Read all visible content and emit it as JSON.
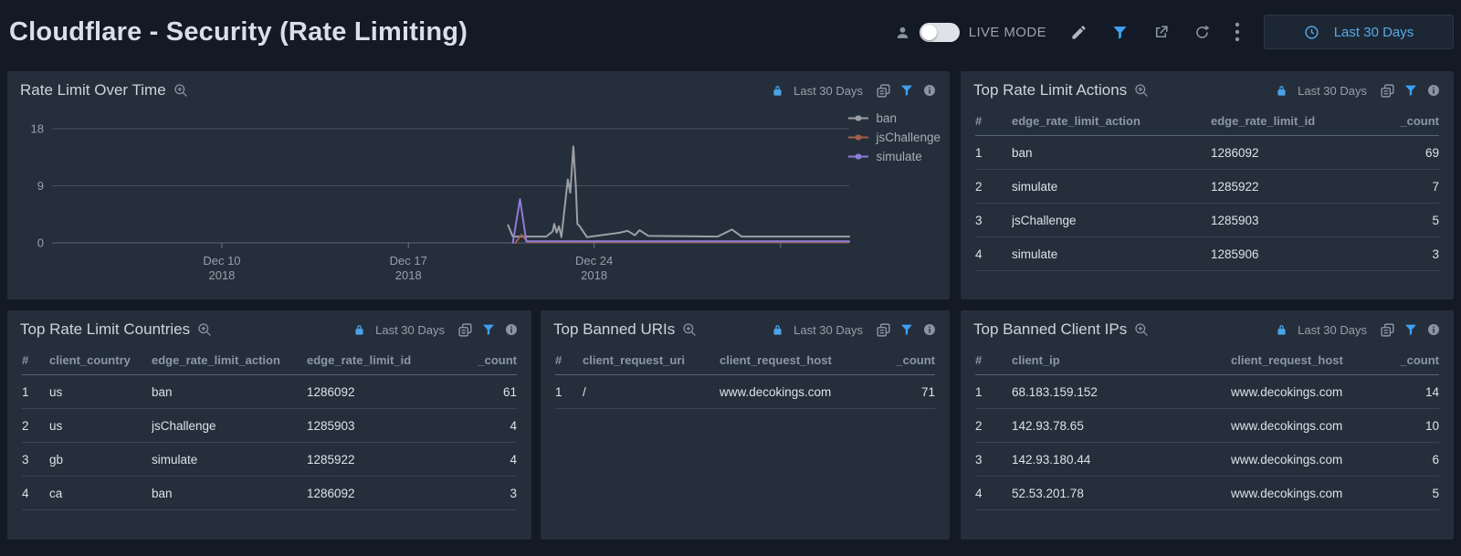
{
  "header": {
    "title": "Cloudflare - Security (Rate Limiting)",
    "live_mode_label": "LIVE MODE",
    "live_mode_on": false,
    "time_range": "Last 30 Days"
  },
  "panels": {
    "rate_limit_over_time": {
      "title": "Rate Limit Over Time",
      "time_range": "Last 30 Days"
    },
    "top_rate_limit_actions": {
      "title": "Top Rate Limit Actions",
      "time_range": "Last 30 Days",
      "table": {
        "columns": [
          "#",
          "edge_rate_limit_action",
          "edge_rate_limit_id",
          "_count"
        ],
        "rows": [
          [
            "1",
            "ban",
            "1286092",
            "69"
          ],
          [
            "2",
            "simulate",
            "1285922",
            "7"
          ],
          [
            "3",
            "jsChallenge",
            "1285903",
            "5"
          ],
          [
            "4",
            "simulate",
            "1285906",
            "3"
          ]
        ]
      }
    },
    "top_rate_limit_countries": {
      "title": "Top Rate Limit Countries",
      "time_range": "Last 30 Days",
      "table": {
        "columns": [
          "#",
          "client_country",
          "edge_rate_limit_action",
          "edge_rate_limit_id",
          "_count"
        ],
        "rows": [
          [
            "1",
            "us",
            "ban",
            "1286092",
            "61"
          ],
          [
            "2",
            "us",
            "jsChallenge",
            "1285903",
            "4"
          ],
          [
            "3",
            "gb",
            "simulate",
            "1285922",
            "4"
          ],
          [
            "4",
            "ca",
            "ban",
            "1286092",
            "3"
          ]
        ]
      }
    },
    "top_banned_uris": {
      "title": "Top Banned URIs",
      "time_range": "Last 30 Days",
      "table": {
        "columns": [
          "#",
          "client_request_uri",
          "client_request_host",
          "_count"
        ],
        "rows": [
          [
            "1",
            "/",
            "www.decokings.com",
            "71"
          ]
        ]
      }
    },
    "top_banned_client_ips": {
      "title": "Top Banned Client IPs",
      "time_range": "Last 30 Days",
      "table": {
        "columns": [
          "#",
          "client_ip",
          "client_request_host",
          "_count"
        ],
        "rows": [
          [
            "1",
            "68.183.159.152",
            "www.decokings.com",
            "14"
          ],
          [
            "2",
            "142.93.78.65",
            "www.decokings.com",
            "10"
          ],
          [
            "3",
            "142.93.180.44",
            "www.decokings.com",
            "6"
          ],
          [
            "4",
            "52.53.201.78",
            "www.decokings.com",
            "5"
          ]
        ]
      }
    }
  },
  "chart_data": {
    "type": "line",
    "title": "Rate Limit Over Time",
    "xlabel": "",
    "ylabel": "",
    "ylim": [
      0,
      18
    ],
    "yticks": [
      0,
      9,
      18
    ],
    "grid": true,
    "legend_position": "top-right",
    "xticks": [
      {
        "pos": 0.213,
        "line1": "Dec 10",
        "line2": "2018"
      },
      {
        "pos": 0.447,
        "line1": "Dec 17",
        "line2": "2018"
      },
      {
        "pos": 0.68,
        "line1": "Dec 24",
        "line2": "2018"
      },
      {
        "pos": 0.914,
        "line1": "",
        "line2": ""
      }
    ],
    "series": [
      {
        "name": "ban",
        "color": "#9da0a4",
        "points": [
          [
            0.572,
            2.8
          ],
          [
            0.578,
            1.0
          ],
          [
            0.62,
            1.0
          ],
          [
            0.628,
            1.8
          ],
          [
            0.63,
            3.0
          ],
          [
            0.633,
            1.6
          ],
          [
            0.636,
            2.6
          ],
          [
            0.639,
            0.9
          ],
          [
            0.647,
            10.0
          ],
          [
            0.65,
            7.9
          ],
          [
            0.654,
            15.2
          ],
          [
            0.657,
            9.0
          ],
          [
            0.659,
            3.0
          ],
          [
            0.662,
            2.6
          ],
          [
            0.671,
            0.9
          ],
          [
            0.712,
            1.6
          ],
          [
            0.722,
            1.9
          ],
          [
            0.731,
            1.2
          ],
          [
            0.737,
            2.0
          ],
          [
            0.748,
            1.1
          ],
          [
            0.835,
            1.0
          ],
          [
            0.853,
            2.1
          ],
          [
            0.865,
            1.0
          ],
          [
            1.0,
            1.0
          ]
        ]
      },
      {
        "name": "jsChallenge",
        "color": "#a35f4b",
        "points": [
          [
            0.581,
            0.0
          ],
          [
            0.589,
            1.3
          ],
          [
            0.597,
            0.1
          ],
          [
            1.0,
            0.1
          ]
        ]
      },
      {
        "name": "simulate",
        "color": "#8e7dd8",
        "points": [
          [
            0.578,
            0.0
          ],
          [
            0.587,
            6.9
          ],
          [
            0.595,
            0.25
          ],
          [
            1.0,
            0.25
          ]
        ]
      }
    ]
  },
  "colors": {
    "accent_blue": "#3da0f2",
    "link_blue": "#55a9e8",
    "panel_bg": "#252e3b",
    "page_bg": "#131a25"
  },
  "icons": [
    "user-icon",
    "live-mode-toggle",
    "edit-pencil-icon",
    "filter-icon",
    "export-icon",
    "refresh-icon",
    "kebab-menu-icon",
    "clock-icon",
    "zoom-in-icon",
    "lock-icon",
    "copy-icon",
    "info-icon",
    "series-marker-icon"
  ]
}
